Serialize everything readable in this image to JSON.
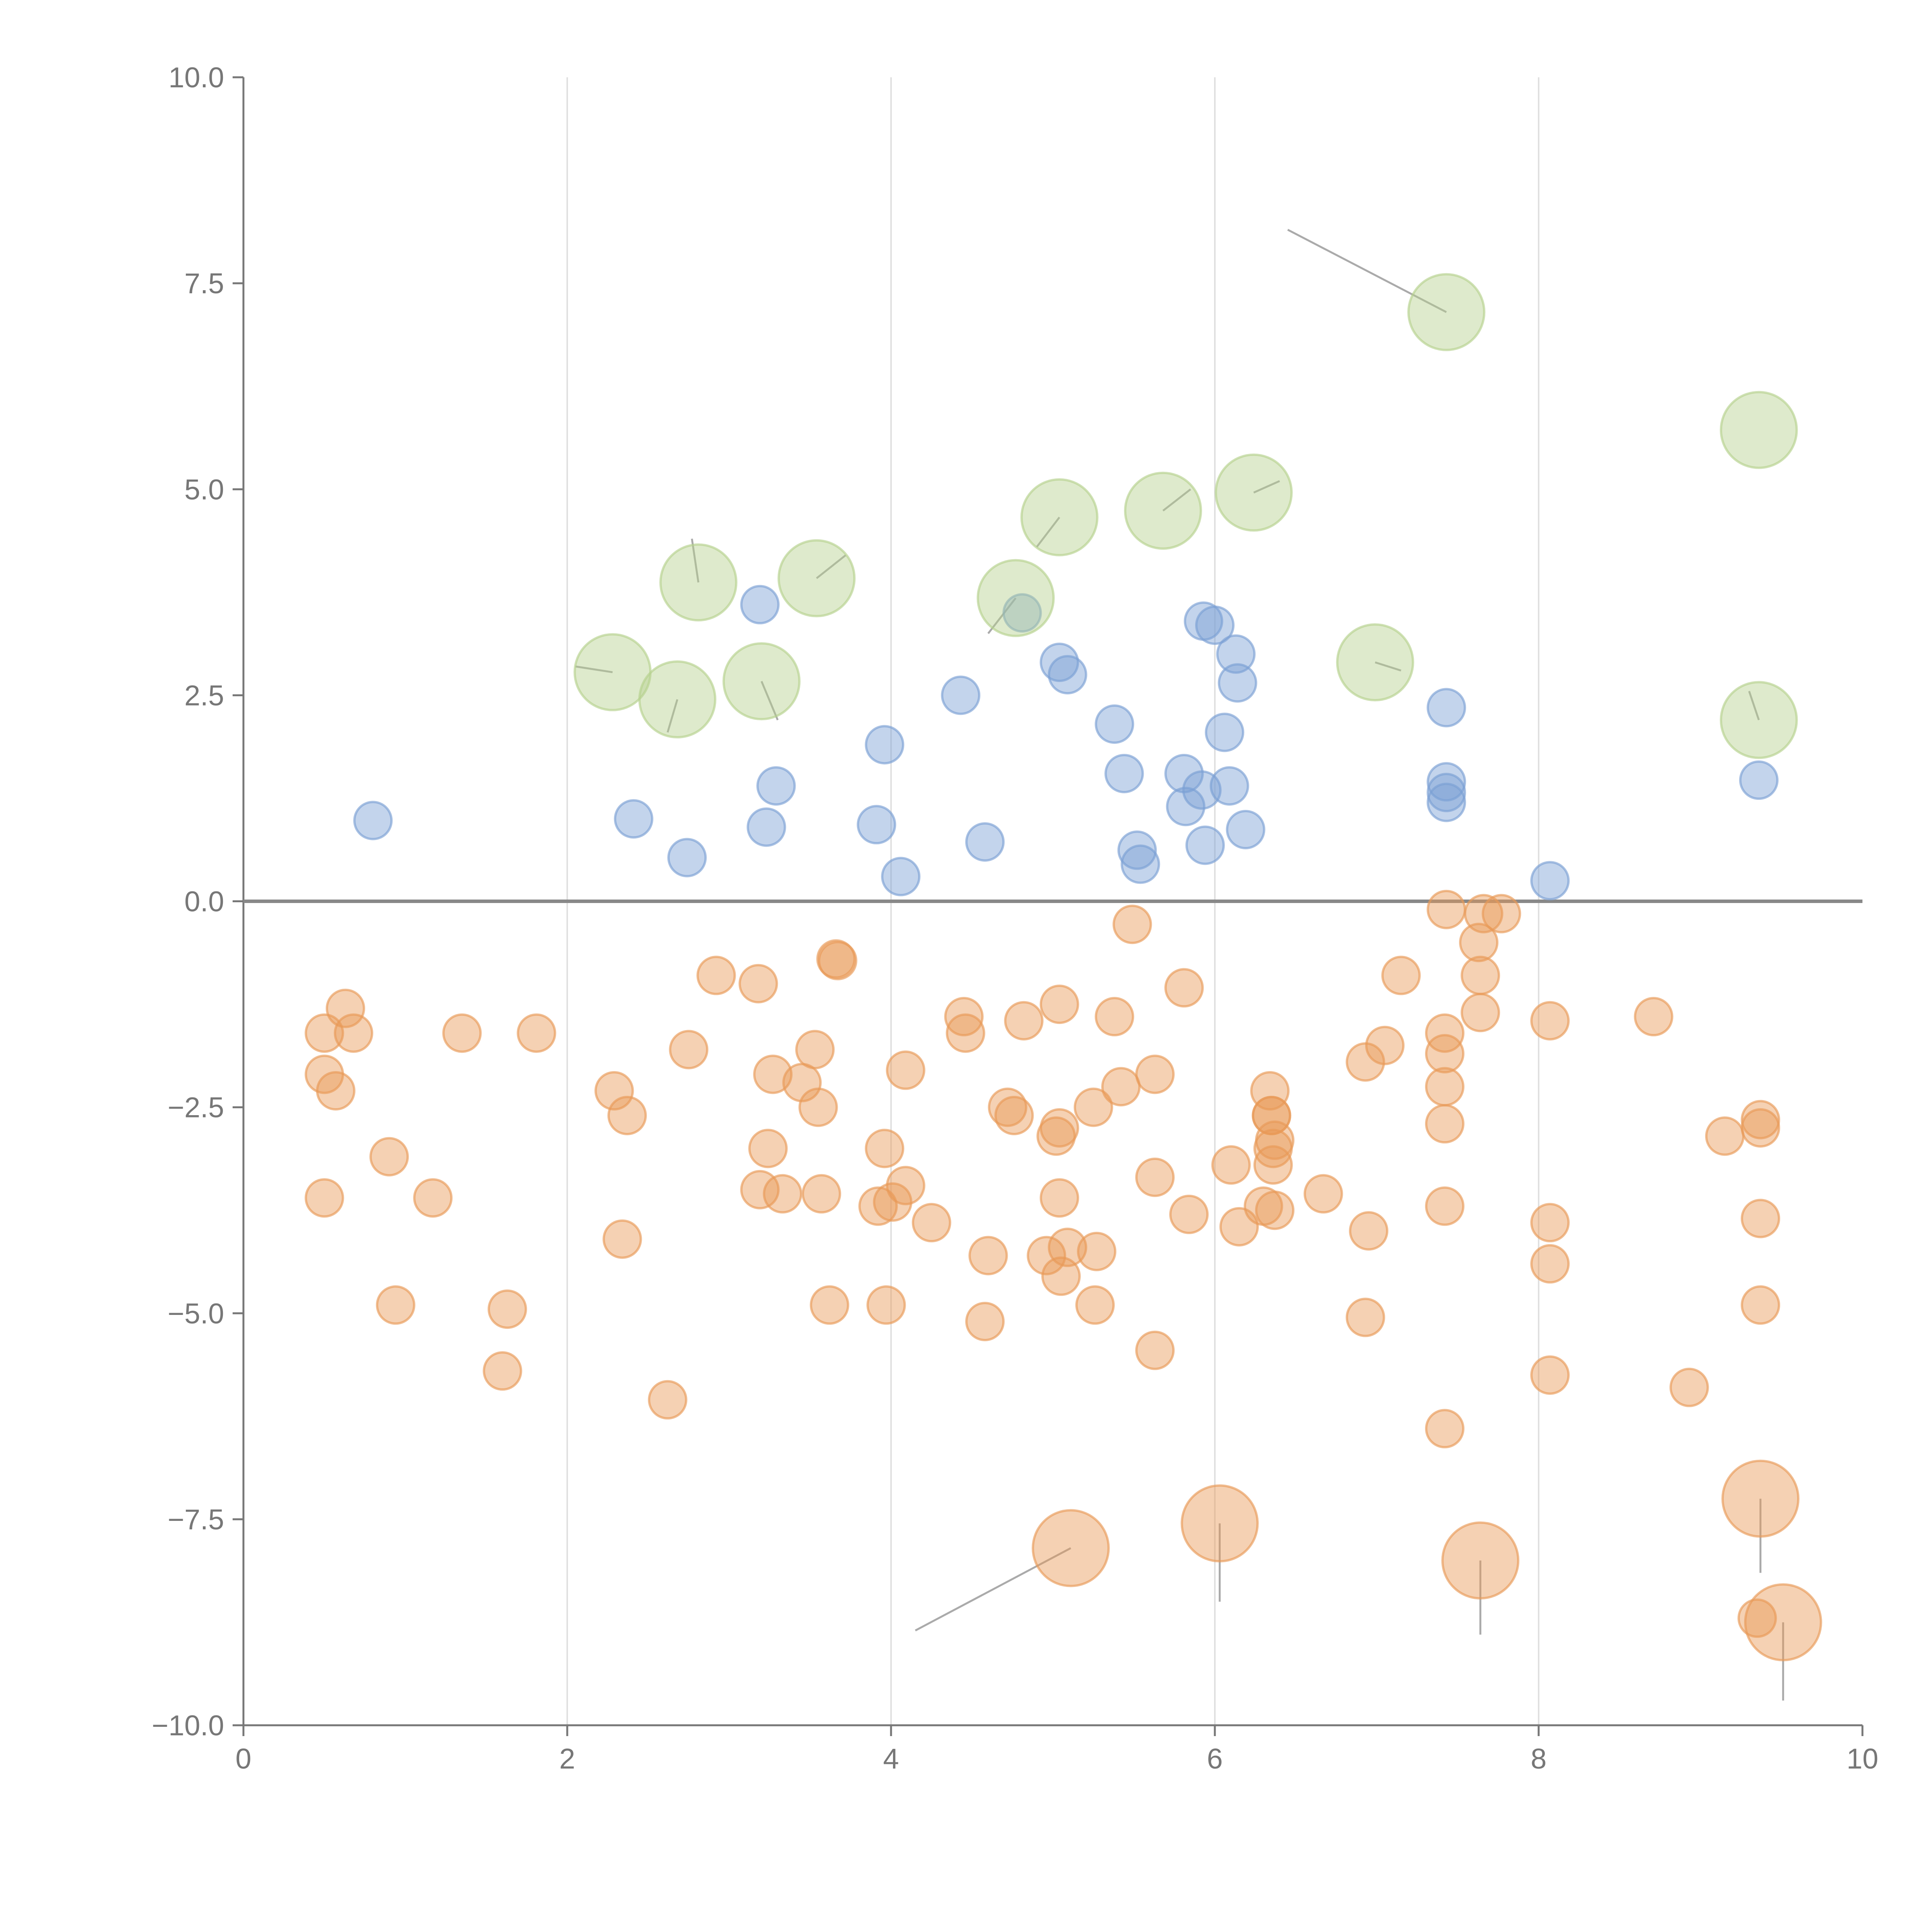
{
  "chart_data": {
    "type": "scatter",
    "title": "",
    "xlabel": "",
    "ylabel": "",
    "xlim": [
      0,
      10
    ],
    "ylim": [
      -10,
      10
    ],
    "x_ticks": [
      0,
      2,
      4,
      6,
      8,
      10
    ],
    "x_tick_labels": [
      "0",
      "2",
      "4",
      "6",
      "8",
      "10"
    ],
    "y_ticks": [
      10,
      7.5,
      5,
      2.5,
      0,
      -2.5,
      -5,
      -7.5,
      -10
    ],
    "y_tick_labels": [
      "10.0",
      "7.5",
      "5.0",
      "2.5",
      "0.0",
      "−2.5",
      "−5.0",
      "−7.5",
      "−10.0"
    ],
    "grid": "vertical",
    "zero_line": true,
    "legend": "none",
    "series": [
      {
        "color": "#e89a57",
        "size": "small",
        "points": [
          [
            0.5,
            -1.6
          ],
          [
            0.5,
            -2.1
          ],
          [
            0.5,
            -3.6
          ],
          [
            0.57,
            -2.3
          ],
          [
            0.63,
            -1.3
          ],
          [
            0.68,
            -1.6
          ],
          [
            0.9,
            -3.1
          ],
          [
            0.94,
            -4.9
          ],
          [
            1.17,
            -3.6
          ],
          [
            1.35,
            -1.6
          ],
          [
            1.6,
            -5.7
          ],
          [
            1.63,
            -4.95
          ],
          [
            1.81,
            -1.6
          ],
          [
            2.29,
            -2.3
          ],
          [
            2.34,
            -4.1
          ],
          [
            2.37,
            -2.6
          ],
          [
            2.62,
            -6.05
          ],
          [
            2.75,
            -1.8
          ],
          [
            2.92,
            -0.9
          ],
          [
            3.18,
            -1.0
          ],
          [
            3.19,
            -3.5
          ],
          [
            3.24,
            -3.0
          ],
          [
            3.27,
            -2.1
          ],
          [
            3.33,
            -3.55
          ],
          [
            3.45,
            -2.2
          ],
          [
            3.53,
            -1.8
          ],
          [
            3.55,
            -2.5
          ],
          [
            3.57,
            -3.55
          ],
          [
            3.62,
            -4.9
          ],
          [
            3.66,
            -0.7
          ],
          [
            3.67,
            -0.72
          ],
          [
            3.92,
            -3.7
          ],
          [
            3.96,
            -3.0
          ],
          [
            3.97,
            -4.9
          ],
          [
            4.01,
            -3.65
          ],
          [
            4.09,
            -3.45
          ],
          [
            4.09,
            -2.05
          ],
          [
            4.25,
            -3.9
          ],
          [
            4.45,
            -1.4
          ],
          [
            4.46,
            -1.6
          ],
          [
            4.58,
            -5.1
          ],
          [
            4.6,
            -4.3
          ],
          [
            4.72,
            -2.5
          ],
          [
            4.76,
            -2.6
          ],
          [
            4.82,
            -1.45
          ],
          [
            4.96,
            -4.3
          ],
          [
            5.02,
            -2.85
          ],
          [
            5.04,
            -1.25
          ],
          [
            5.04,
            -2.75
          ],
          [
            5.04,
            -3.6
          ],
          [
            5.05,
            -4.55
          ],
          [
            5.09,
            -4.2
          ],
          [
            5.25,
            -2.5
          ],
          [
            5.26,
            -4.9
          ],
          [
            5.27,
            -4.25
          ],
          [
            5.38,
            -1.4
          ],
          [
            5.42,
            -2.25
          ],
          [
            5.49,
            -0.28
          ],
          [
            5.63,
            -2.1
          ],
          [
            5.63,
            -3.35
          ],
          [
            5.63,
            -5.45
          ],
          [
            5.81,
            -1.05
          ],
          [
            5.84,
            -3.8
          ],
          [
            6.1,
            -3.2
          ],
          [
            6.15,
            -3.95
          ],
          [
            6.3,
            -3.7
          ],
          [
            6.34,
            -2.3
          ],
          [
            6.35,
            -2.6
          ],
          [
            6.35,
            -2.6
          ],
          [
            6.36,
            -3.0
          ],
          [
            6.36,
            -3.2
          ],
          [
            6.37,
            -2.9
          ],
          [
            6.37,
            -3.75
          ],
          [
            6.67,
            -3.55
          ],
          [
            6.93,
            -1.95
          ],
          [
            6.93,
            -5.05
          ],
          [
            6.95,
            -4.0
          ],
          [
            7.05,
            -1.75
          ],
          [
            7.15,
            -0.9
          ],
          [
            7.42,
            -1.6
          ],
          [
            7.42,
            -1.85
          ],
          [
            7.42,
            -2.25
          ],
          [
            7.42,
            -2.7
          ],
          [
            7.42,
            -3.7
          ],
          [
            7.42,
            -6.4
          ],
          [
            7.43,
            -0.1
          ],
          [
            7.63,
            -0.5
          ],
          [
            7.64,
            -0.9
          ],
          [
            7.64,
            -1.35
          ],
          [
            7.66,
            -0.15
          ],
          [
            7.77,
            -0.15
          ],
          [
            8.07,
            -1.45
          ],
          [
            8.07,
            -3.9
          ],
          [
            8.07,
            -4.4
          ],
          [
            8.07,
            -5.75
          ],
          [
            8.71,
            -1.4
          ],
          [
            8.93,
            -5.9
          ],
          [
            9.15,
            -2.85
          ],
          [
            9.35,
            -8.7
          ],
          [
            9.37,
            -2.65
          ],
          [
            9.37,
            -2.75
          ],
          [
            9.37,
            -3.85
          ],
          [
            9.37,
            -4.9
          ]
        ]
      },
      {
        "color": "#e89a57",
        "size": "large",
        "points": [
          [
            5.11,
            -7.85
          ],
          [
            6.03,
            -7.55
          ],
          [
            7.64,
            -8.0
          ],
          [
            9.37,
            -7.25
          ],
          [
            9.51,
            -8.75
          ]
        ]
      },
      {
        "color": "#7b9fd4",
        "size": "small",
        "points": [
          [
            0.8,
            0.98
          ],
          [
            2.41,
            1.0
          ],
          [
            2.74,
            0.53
          ],
          [
            3.19,
            3.6
          ],
          [
            3.23,
            0.9
          ],
          [
            3.29,
            1.4
          ],
          [
            3.91,
            0.93
          ],
          [
            3.96,
            1.9
          ],
          [
            4.06,
            0.3
          ],
          [
            4.43,
            2.5
          ],
          [
            4.58,
            0.72
          ],
          [
            4.81,
            3.5
          ],
          [
            5.04,
            2.9
          ],
          [
            5.09,
            2.75
          ],
          [
            5.38,
            2.15
          ],
          [
            5.44,
            1.55
          ],
          [
            5.52,
            0.62
          ],
          [
            5.54,
            0.45
          ],
          [
            5.81,
            1.55
          ],
          [
            5.82,
            1.15
          ],
          [
            5.92,
            1.35
          ],
          [
            5.93,
            3.4
          ],
          [
            5.94,
            0.68
          ],
          [
            6.0,
            3.35
          ],
          [
            6.06,
            2.05
          ],
          [
            6.09,
            1.4
          ],
          [
            6.13,
            3.0
          ],
          [
            6.14,
            2.65
          ],
          [
            6.19,
            0.87
          ],
          [
            7.43,
            2.35
          ],
          [
            7.43,
            1.45
          ],
          [
            7.43,
            1.32
          ],
          [
            7.43,
            1.2
          ],
          [
            8.07,
            0.25
          ],
          [
            9.36,
            1.47
          ]
        ]
      },
      {
        "color": "#b5d18e",
        "size": "large",
        "points": [
          [
            2.28,
            2.78
          ],
          [
            2.68,
            2.45
          ],
          [
            2.81,
            3.87
          ],
          [
            3.2,
            2.67
          ],
          [
            3.54,
            3.92
          ],
          [
            4.77,
            3.68
          ],
          [
            5.04,
            4.66
          ],
          [
            5.68,
            4.74
          ],
          [
            6.24,
            4.96
          ],
          [
            6.99,
            2.9
          ],
          [
            7.43,
            7.15
          ],
          [
            9.36,
            5.72
          ],
          [
            9.36,
            2.2
          ]
        ]
      }
    ],
    "leader_lines": [
      [
        [
          6.45,
          8.15
        ],
        [
          7.43,
          7.15
        ]
      ],
      [
        [
          2.05,
          2.85
        ],
        [
          2.28,
          2.78
        ]
      ],
      [
        [
          2.62,
          2.05
        ],
        [
          2.68,
          2.45
        ]
      ],
      [
        [
          2.77,
          4.4
        ],
        [
          2.81,
          3.87
        ]
      ],
      [
        [
          3.2,
          2.67
        ],
        [
          3.3,
          2.2
        ]
      ],
      [
        [
          3.54,
          3.92
        ],
        [
          3.72,
          4.2
        ]
      ],
      [
        [
          4.77,
          3.68
        ],
        [
          4.6,
          3.25
        ]
      ],
      [
        [
          5.04,
          4.66
        ],
        [
          4.9,
          4.3
        ]
      ],
      [
        [
          5.68,
          4.74
        ],
        [
          5.85,
          5.0
        ]
      ],
      [
        [
          6.24,
          4.96
        ],
        [
          6.4,
          5.1
        ]
      ],
      [
        [
          6.99,
          2.9
        ],
        [
          7.15,
          2.8
        ]
      ],
      [
        [
          9.36,
          2.2
        ],
        [
          9.3,
          2.55
        ]
      ],
      [
        [
          4.15,
          -8.85
        ],
        [
          5.11,
          -7.85
        ]
      ],
      [
        [
          6.03,
          -7.55
        ],
        [
          6.03,
          -8.5
        ]
      ],
      [
        [
          7.64,
          -8.0
        ],
        [
          7.64,
          -8.9
        ]
      ],
      [
        [
          9.37,
          -7.25
        ],
        [
          9.37,
          -8.15
        ]
      ],
      [
        [
          9.51,
          -8.75
        ],
        [
          9.51,
          -9.7
        ]
      ]
    ]
  }
}
